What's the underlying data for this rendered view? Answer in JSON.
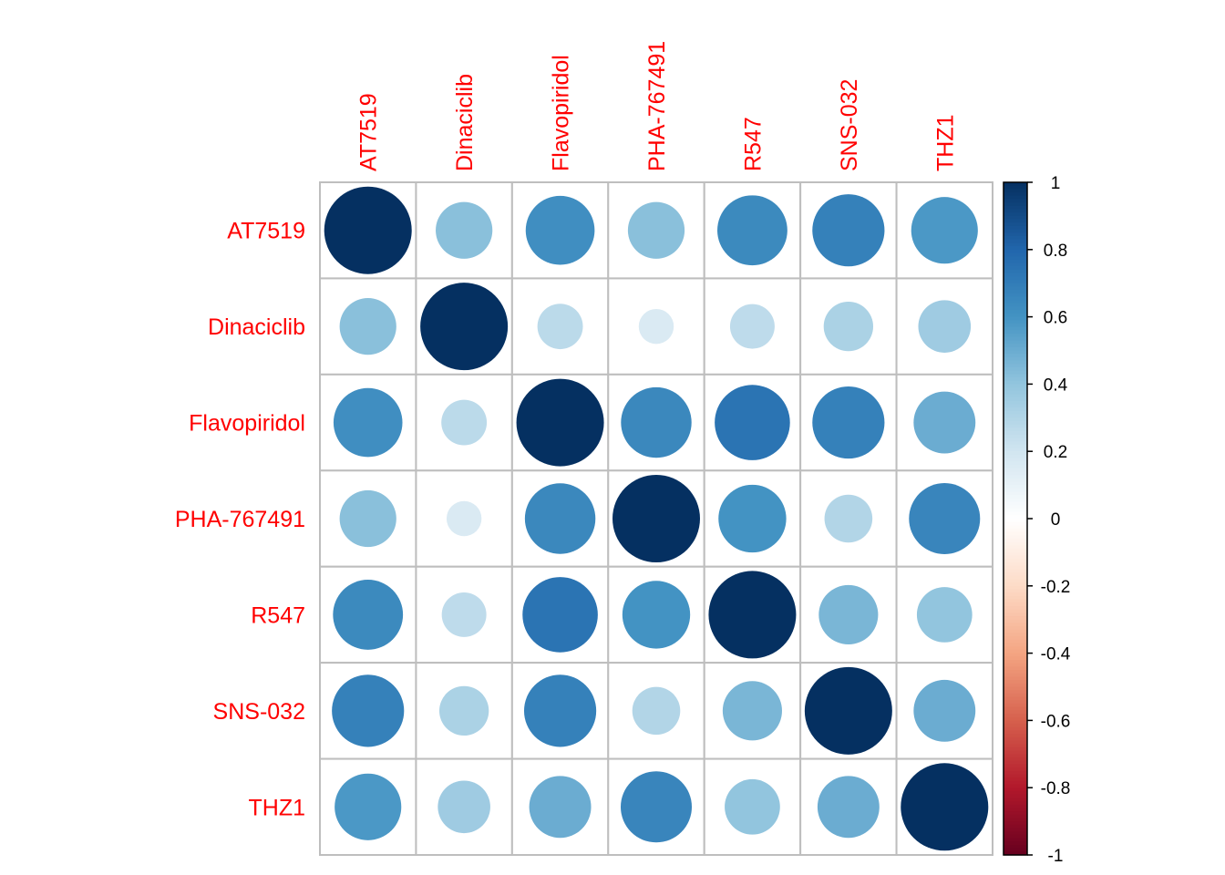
{
  "chart_data": {
    "type": "heatmap",
    "subtype": "correlation-circle",
    "title": "",
    "variables": [
      "AT7519",
      "Dinaciclib",
      "Flavopiridol",
      "PHA-767491",
      "R547",
      "SNS-032",
      "THZ1"
    ],
    "matrix": [
      [
        1.0,
        0.42,
        0.62,
        0.42,
        0.64,
        0.68,
        0.58
      ],
      [
        0.42,
        1.0,
        0.27,
        0.16,
        0.26,
        0.32,
        0.36
      ],
      [
        0.62,
        0.27,
        1.0,
        0.65,
        0.74,
        0.68,
        0.5
      ],
      [
        0.42,
        0.16,
        0.65,
        1.0,
        0.6,
        0.3,
        0.66
      ],
      [
        0.64,
        0.26,
        0.74,
        0.6,
        1.0,
        0.46,
        0.4
      ],
      [
        0.68,
        0.32,
        0.68,
        0.3,
        0.46,
        1.0,
        0.5
      ],
      [
        0.58,
        0.36,
        0.5,
        0.66,
        0.4,
        0.5,
        1.0
      ]
    ],
    "color_scale": {
      "range": [
        -1,
        1
      ],
      "ticks": [
        "-1",
        "-0.8",
        "-0.6",
        "-0.4",
        "-0.2",
        "0",
        "0.2",
        "0.4",
        "0.6",
        "0.8",
        "1"
      ],
      "tick_values": [
        -1,
        -0.8,
        -0.6,
        -0.4,
        -0.2,
        0,
        0.2,
        0.4,
        0.6,
        0.8,
        1
      ],
      "palette": [
        "#67001F",
        "#B2182B",
        "#D6604D",
        "#F4A582",
        "#FDDBC7",
        "#FFFFFF",
        "#D1E5F0",
        "#92C5DE",
        "#4393C3",
        "#2166AC",
        "#053061"
      ],
      "legend_position": "right"
    },
    "label_color": "#FF0000",
    "grid_color": "#BEBEBE",
    "grid": true
  }
}
